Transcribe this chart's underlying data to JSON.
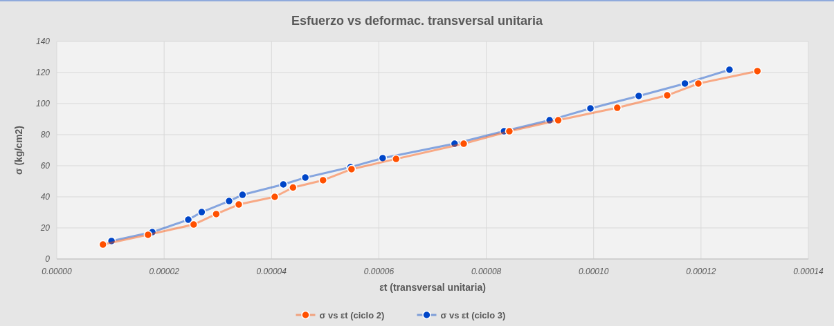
{
  "chart_data": {
    "type": "line",
    "title": "Esfuerzo vs deformac. transversal unitaria",
    "xlabel": "εt (transversal unitaria)",
    "ylabel": "σ (kg/cm2)",
    "xlim": [
      0,
      0.00014
    ],
    "ylim": [
      0,
      140
    ],
    "xticks": [
      {
        "value": 0,
        "label": "0.00000"
      },
      {
        "value": 2e-05,
        "label": "0.00002"
      },
      {
        "value": 4e-05,
        "label": "0.00004"
      },
      {
        "value": 6e-05,
        "label": "0.00006"
      },
      {
        "value": 8e-05,
        "label": "0.00008"
      },
      {
        "value": 0.0001,
        "label": "0.00010"
      },
      {
        "value": 0.00012,
        "label": "0.00012"
      },
      {
        "value": 0.00014,
        "label": "0.00014"
      }
    ],
    "yticks": [
      0,
      20,
      40,
      60,
      80,
      100,
      120,
      140
    ],
    "grid": true,
    "legend": "bottom",
    "marker": "circle",
    "line_style": "solid",
    "series": [
      {
        "name": "σ vs εt (ciclo 2)",
        "color": "#ff5000",
        "x": [
          8.6e-06,
          1.7e-05,
          2.55e-05,
          2.97e-05,
          3.39e-05,
          4.06e-05,
          4.4e-05,
          4.96e-05,
          5.49e-05,
          6.32e-05,
          7.58e-05,
          8.43e-05,
          9.34e-05,
          0.0001044,
          0.0001137,
          0.0001195,
          0.0001305
        ],
        "values": [
          9.3,
          15.6,
          22.2,
          28.9,
          35.1,
          40,
          46,
          50.7,
          57.8,
          64.4,
          74.2,
          82.2,
          89.3,
          97.3,
          105.3,
          112.9,
          120.9
        ]
      },
      {
        "name": "σ vs εt (ciclo 3)",
        "color": "#0046c8",
        "x": [
          1.02e-05,
          1.78e-05,
          2.45e-05,
          2.7e-05,
          3.21e-05,
          3.46e-05,
          4.22e-05,
          4.63e-05,
          5.47e-05,
          6.07e-05,
          7.41e-05,
          8.33e-05,
          9.18e-05,
          9.94e-05,
          0.0001084,
          0.000117,
          0.0001253
        ],
        "values": [
          11.6,
          17.3,
          25.3,
          30.2,
          37.3,
          41.3,
          48,
          52.4,
          59.1,
          64.9,
          74.2,
          82.2,
          89.3,
          96.9,
          104.9,
          112.9,
          121.8
        ]
      }
    ]
  }
}
